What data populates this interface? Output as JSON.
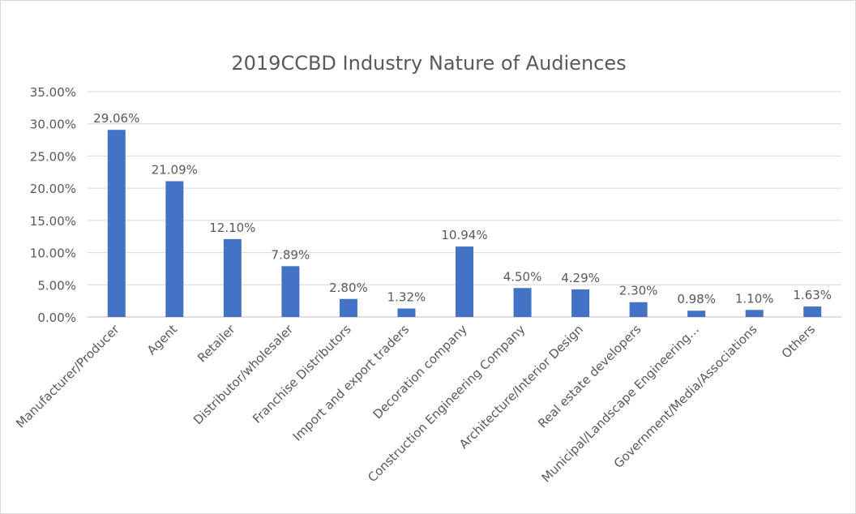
{
  "chart_data": {
    "type": "bar",
    "title": "2019CCBD Industry Nature of Audiences",
    "categories": [
      "Manufacturer/Producer",
      "Agent",
      "Retailer",
      "Distributor/wholesaler",
      "Franchise Distributors",
      "Import and export traders",
      "Decoration company",
      "Construction Engineering Company",
      "Architecture/Interior Design",
      "Real estate developers",
      "Municipal/Landscape Engineering…",
      "Government/Media/Associations",
      "Others"
    ],
    "values": [
      29.06,
      21.09,
      12.1,
      7.89,
      2.8,
      1.32,
      10.94,
      4.5,
      4.29,
      2.3,
      0.98,
      1.1,
      1.63
    ],
    "data_labels": [
      "29.06%",
      "21.09%",
      "12.10%",
      "7.89%",
      "2.80%",
      "1.32%",
      "10.94%",
      "4.50%",
      "4.29%",
      "2.30%",
      "0.98%",
      "1.10%",
      "1.63%"
    ],
    "y_ticks": [
      "0.00%",
      "5.00%",
      "10.00%",
      "15.00%",
      "20.00%",
      "25.00%",
      "30.00%",
      "35.00%"
    ],
    "ylim": [
      0,
      35
    ],
    "xlabel": "",
    "ylabel": "",
    "grid": true,
    "legend": "none",
    "bar_color": "#4472C4"
  }
}
